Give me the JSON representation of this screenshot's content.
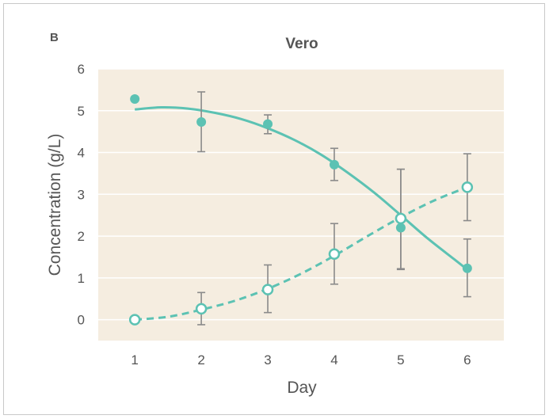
{
  "panel_label": "B",
  "chart_data": {
    "type": "scatter",
    "title": "Vero",
    "xlabel": "Day",
    "ylabel": "Concentration (g/L)",
    "xlim": [
      0.45,
      6.55
    ],
    "ylim": [
      -0.5,
      6
    ],
    "x_ticks": [
      "1",
      "2",
      "3",
      "4",
      "5",
      "6"
    ],
    "y_ticks": [
      "0",
      "1",
      "2",
      "3",
      "4",
      "5",
      "6"
    ],
    "grid": true,
    "legend": "none",
    "colors": {
      "series": "#5cc2b3",
      "plot_bg": "#f5ede0",
      "grid": "#ffffff",
      "error_bars": "#8a8a8a"
    },
    "series": [
      {
        "marker": "filled-circle",
        "line": "solid",
        "x": [
          1,
          2,
          3,
          4,
          5,
          6
        ],
        "y": [
          5.28,
          4.73,
          4.68,
          3.71,
          2.2,
          1.23
        ],
        "err_low": [
          null,
          4.02,
          4.45,
          3.33,
          1.2,
          0.55
        ],
        "err_high": [
          null,
          5.45,
          4.9,
          4.1,
          3.6,
          1.93
        ],
        "fit_x": [
          1.0,
          1.4,
          1.8,
          2.2,
          2.6,
          3.0,
          3.4,
          3.8,
          4.2,
          4.6,
          5.0,
          5.4,
          5.8,
          6.0
        ],
        "fit_y": [
          5.03,
          5.08,
          5.05,
          4.95,
          4.8,
          4.58,
          4.3,
          3.95,
          3.52,
          3.04,
          2.5,
          1.95,
          1.45,
          1.2
        ]
      },
      {
        "marker": "open-circle",
        "line": "dashed",
        "x": [
          1,
          2,
          3,
          4,
          5,
          6
        ],
        "y": [
          0.0,
          0.26,
          0.72,
          1.57,
          2.42,
          3.17
        ],
        "err_low": [
          null,
          -0.12,
          0.17,
          0.85,
          1.22,
          2.37
        ],
        "err_high": [
          null,
          0.65,
          1.31,
          2.3,
          3.6,
          3.97
        ],
        "fit_x": [
          1.0,
          1.5,
          2.0,
          2.5,
          3.0,
          3.5,
          4.0,
          4.5,
          5.0,
          5.5,
          6.0
        ],
        "fit_y": [
          0.0,
          0.07,
          0.24,
          0.45,
          0.74,
          1.1,
          1.53,
          2.0,
          2.45,
          2.85,
          3.17
        ]
      }
    ]
  }
}
